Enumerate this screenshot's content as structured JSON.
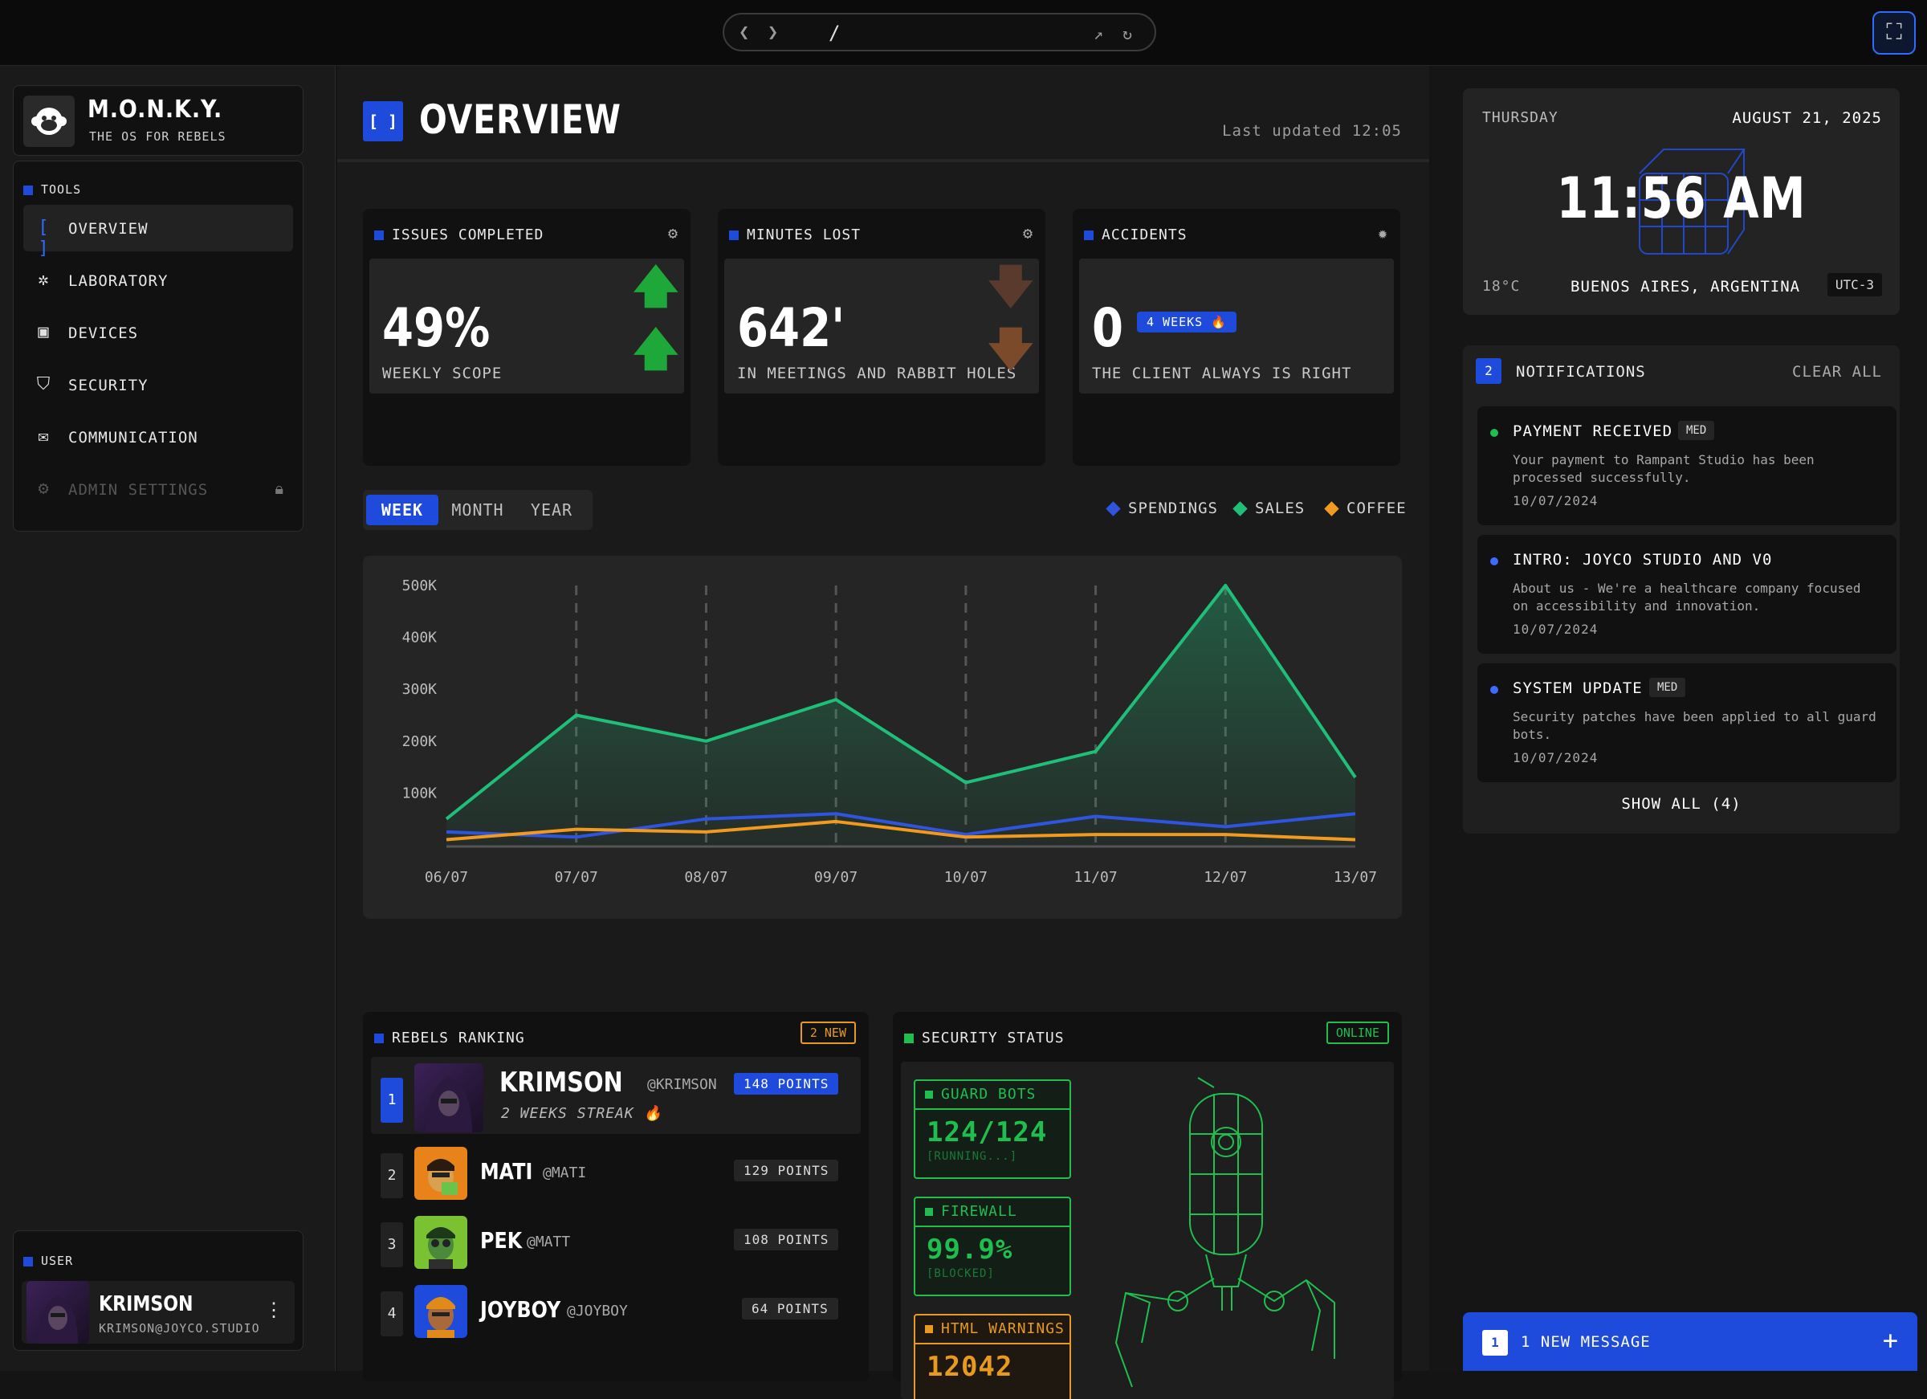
{
  "browser": {
    "path": "/"
  },
  "brand": {
    "name": "M.O.N.K.Y.",
    "tagline": "THE OS FOR REBELS"
  },
  "sidebar": {
    "section_label": "TOOLS",
    "items": [
      {
        "label": "OVERVIEW",
        "icon": "brackets-icon"
      },
      {
        "label": "LABORATORY",
        "icon": "atom-icon"
      },
      {
        "label": "DEVICES",
        "icon": "chip-icon"
      },
      {
        "label": "SECURITY",
        "icon": "shield-icon"
      },
      {
        "label": "COMMUNICATION",
        "icon": "mail-icon"
      },
      {
        "label": "ADMIN SETTINGS",
        "icon": "gear-icon",
        "locked": true
      }
    ]
  },
  "user": {
    "section_label": "USER",
    "name": "KRIMSON",
    "email": "KRIMSON@JOYCO.STUDIO"
  },
  "header": {
    "icon": "[ ]",
    "title": "OVERVIEW",
    "updated": "Last updated 12:05"
  },
  "stats": [
    {
      "title": "ISSUES COMPLETED",
      "value": "49%",
      "sub": "WEEKLY SCOPE"
    },
    {
      "title": "MINUTES LOST",
      "value": "642'",
      "sub": "IN MEETINGS AND RABBIT HOLES"
    },
    {
      "title": "ACCIDENTS",
      "value": "0",
      "sub": "THE CLIENT ALWAYS IS RIGHT",
      "badge": "4 WEEKS 🔥"
    }
  ],
  "tabs": [
    "WEEK",
    "MONTH",
    "YEAR"
  ],
  "legend": [
    {
      "label": "SPENDINGS",
      "color": "#2f55e0"
    },
    {
      "label": "SALES",
      "color": "#1fbf7a"
    },
    {
      "label": "COFFEE",
      "color": "#f29a1f"
    }
  ],
  "chart_data": {
    "type": "area",
    "x": [
      "06/07",
      "07/07",
      "08/07",
      "09/07",
      "10/07",
      "11/07",
      "12/07",
      "13/07"
    ],
    "y_ticks": [
      "500K",
      "400K",
      "300K",
      "200K",
      "100K"
    ],
    "ylim": [
      0,
      500000
    ],
    "grid": "vertical dashed",
    "legend_position": "top-right",
    "series": [
      {
        "name": "SALES",
        "values": [
          50000,
          250000,
          200000,
          280000,
          120000,
          180000,
          500000,
          130000
        ]
      },
      {
        "name": "SPENDINGS",
        "values": [
          25000,
          15000,
          50000,
          60000,
          20000,
          55000,
          35000,
          60000
        ]
      },
      {
        "name": "COFFEE",
        "values": [
          10000,
          30000,
          25000,
          45000,
          15000,
          20000,
          20000,
          10000
        ]
      }
    ]
  },
  "ranking": {
    "title": "REBELS RANKING",
    "new_badge": "2 NEW",
    "rows": [
      {
        "rank": "1",
        "name": "KRIMSON",
        "handle": "@KRIMSON",
        "streak": "2 WEEKS STREAK 🔥",
        "points": "148 POINTS"
      },
      {
        "rank": "2",
        "name": "MATI",
        "handle": "@MATI",
        "points": "129 POINTS"
      },
      {
        "rank": "3",
        "name": "PEK",
        "handle": "@MATT",
        "points": "108 POINTS"
      },
      {
        "rank": "4",
        "name": "JOYBOY",
        "handle": "@JOYBOY",
        "points": "64 POINTS"
      }
    ]
  },
  "security": {
    "title": "SECURITY STATUS",
    "status": "ONLINE",
    "boxes": [
      {
        "title": "GUARD BOTS",
        "value": "124/124",
        "sub": "[RUNNING...]",
        "color": "#1fbe4f"
      },
      {
        "title": "FIREWALL",
        "value": "99.9%",
        "sub": "[BLOCKED]",
        "color": "#1fbe4f"
      },
      {
        "title": "HTML WARNINGS",
        "value": "12042",
        "sub": "",
        "color": "#e89a1f"
      }
    ]
  },
  "clock": {
    "day": "THURSDAY",
    "date": "AUGUST 21, 2025",
    "time": "11:56 AM",
    "temp": "18°C",
    "city": "BUENOS AIRES, ARGENTINA",
    "tz": "UTC-3"
  },
  "notifications": {
    "count": "2",
    "title": "NOTIFICATIONS",
    "clear": "CLEAR ALL",
    "items": [
      {
        "title": "PAYMENT RECEIVED",
        "priority": "MED",
        "desc": "Your payment to Rampant Studio has been processed successfully.",
        "date": "10/07/2024",
        "dot": "#1fbe4f"
      },
      {
        "title": "INTRO: JOYCO STUDIO AND V0",
        "priority": "",
        "desc": "About us - We're a healthcare company focused on accessibility and innovation.",
        "date": "10/07/2024",
        "dot": "#3b6bff"
      },
      {
        "title": "SYSTEM UPDATE",
        "priority": "MED",
        "desc": "Security patches have been applied to all guard bots.",
        "date": "10/07/2024",
        "dot": "#3b6bff"
      }
    ],
    "show_all": "SHOW ALL (4)"
  },
  "message": {
    "count": "1",
    "label": "1 NEW MESSAGE"
  }
}
